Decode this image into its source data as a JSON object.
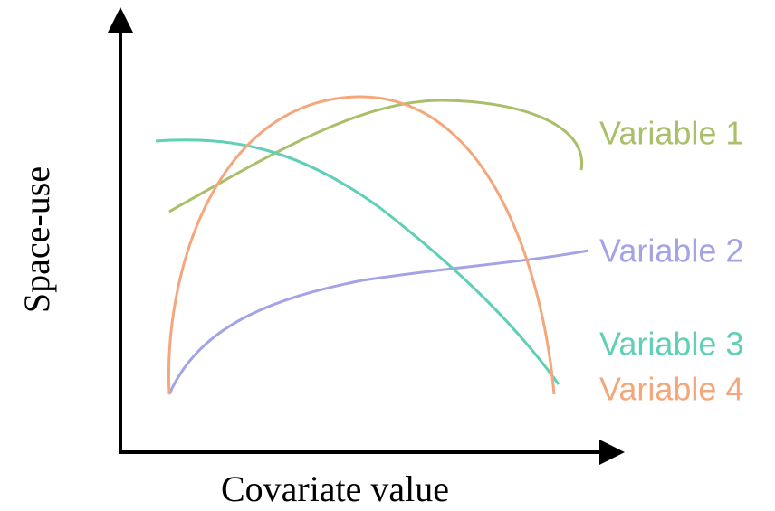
{
  "axes": {
    "x_label": "Covariate value",
    "y_label": "Space-use"
  },
  "curves": [
    {
      "label": "Variable 1",
      "color": "#a9bf6a"
    },
    {
      "label": "Variable 2",
      "color": "#a3a3e6"
    },
    {
      "label": "Variable 3",
      "color": "#5fcfb5"
    },
    {
      "label": "Variable 4",
      "color": "#f5a77c"
    }
  ]
}
